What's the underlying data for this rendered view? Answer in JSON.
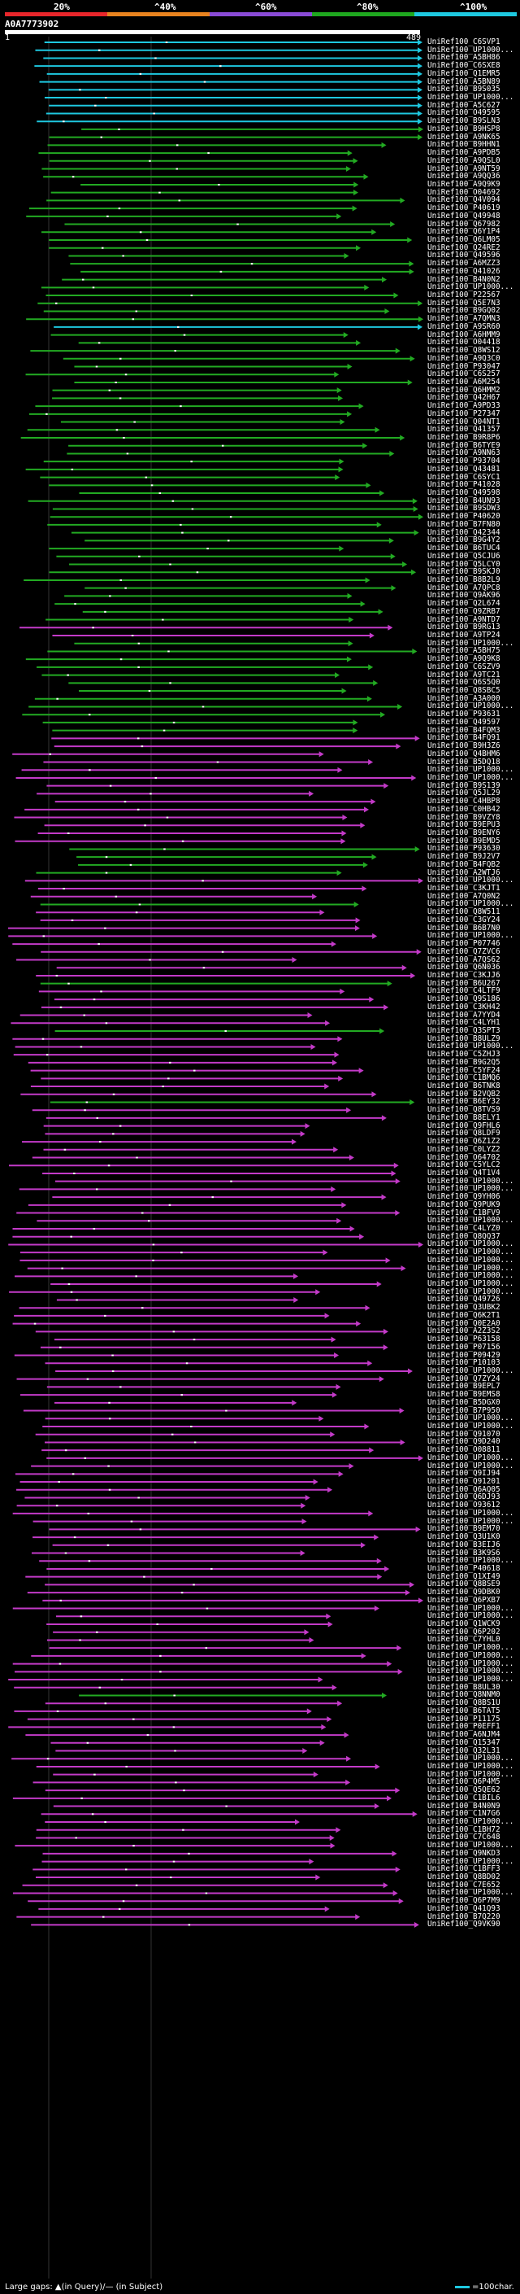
{
  "legend": {
    "ticks": [
      "20%",
      "^40%",
      "^60%",
      "^80%",
      "^100%"
    ],
    "colors": [
      "#e8262b",
      "#e8831f",
      "#8a4bd6",
      "#1fa81f",
      "#1ec8e0"
    ]
  },
  "query": {
    "id": "A0A7773902",
    "start": "1",
    "end": "489"
  },
  "hit_colors": {
    "cyan": "#1ec8e0",
    "green": "#22aa22",
    "magenta": "#c33ac8",
    "gap": "#000000"
  },
  "hits": [
    {
      "label": "UniRef100_C6SVP1",
      "c": "cyan"
    },
    {
      "label": "UniRef100_UP1000...",
      "c": "cyan"
    },
    {
      "label": "UniRef100_A5BH86",
      "c": "cyan"
    },
    {
      "label": "UniRef100_C6SXE8",
      "c": "cyan"
    },
    {
      "label": "UniRef100_Q1EMR5",
      "c": "cyan"
    },
    {
      "label": "UniRef100_A5BN89",
      "c": "cyan"
    },
    {
      "label": "UniRef100_B9S035",
      "c": "cyan"
    },
    {
      "label": "UniRef100_UP1000...",
      "c": "cyan"
    },
    {
      "label": "UniRef100_A5C627",
      "c": "cyan"
    },
    {
      "label": "UniRef100_O49595",
      "c": "cyan"
    },
    {
      "label": "UniRef100_B9SLN3",
      "c": "cyan"
    },
    {
      "label": "UniRef100_B9HSP8",
      "c": "green"
    },
    {
      "label": "UniRef100_A9NK65",
      "c": "green"
    },
    {
      "label": "UniRef100_B9HHN1",
      "c": "green"
    },
    {
      "label": "UniRef100_A9PDB5",
      "c": "green"
    },
    {
      "label": "UniRef100_A9QSL0",
      "c": "green"
    },
    {
      "label": "UniRef100_A9NT59",
      "c": "green"
    },
    {
      "label": "UniRef100_A9QQ36",
      "c": "green"
    },
    {
      "label": "UniRef100_A9Q9K9",
      "c": "green"
    },
    {
      "label": "UniRef100_O04692",
      "c": "green"
    },
    {
      "label": "UniRef100_Q4V094",
      "c": "green"
    },
    {
      "label": "UniRef100_P40619",
      "c": "green"
    },
    {
      "label": "UniRef100_Q49948",
      "c": "green"
    },
    {
      "label": "UniRef100_Q67982",
      "c": "green"
    },
    {
      "label": "UniRef100_Q6Y1P4",
      "c": "green"
    },
    {
      "label": "UniRef100_Q6LM05",
      "c": "green"
    },
    {
      "label": "UniRef100_Q24RE2",
      "c": "green"
    },
    {
      "label": "UniRef100_Q49596",
      "c": "green"
    },
    {
      "label": "UniRef100_A6MZZ3",
      "c": "green"
    },
    {
      "label": "UniRef100_Q41026",
      "c": "green"
    },
    {
      "label": "UniRef100_B4N0N2",
      "c": "green"
    },
    {
      "label": "UniRef100_UP1000...",
      "c": "green"
    },
    {
      "label": "UniRef100_P22567",
      "c": "green"
    },
    {
      "label": "UniRef100_Q5E7N3",
      "c": "green"
    },
    {
      "label": "UniRef100_B9GQ02",
      "c": "green"
    },
    {
      "label": "UniRef100_A7QMN3",
      "c": "green"
    },
    {
      "label": "UniRef100_A9SR60",
      "c": "cyan"
    },
    {
      "label": "UniRef100_A6HMM9",
      "c": "green"
    },
    {
      "label": "UniRef100_O04418",
      "c": "green"
    },
    {
      "label": "UniRef100_Q8WS12",
      "c": "green"
    },
    {
      "label": "UniRef100_A9Q3C0",
      "c": "green"
    },
    {
      "label": "UniRef100_P93047",
      "c": "green"
    },
    {
      "label": "UniRef100_C6S257",
      "c": "green"
    },
    {
      "label": "UniRef100_A6M254",
      "c": "green"
    },
    {
      "label": "UniRef100_Q6HMM2",
      "c": "green"
    },
    {
      "label": "UniRef100_Q42H67",
      "c": "green"
    },
    {
      "label": "UniRef100_A9PD33",
      "c": "green"
    },
    {
      "label": "UniRef100_P27347",
      "c": "green"
    },
    {
      "label": "UniRef100_Q04NT1",
      "c": "green"
    },
    {
      "label": "UniRef100_Q41357",
      "c": "green"
    },
    {
      "label": "UniRef100_B9R8P6",
      "c": "green"
    },
    {
      "label": "UniRef100_B6TYE9",
      "c": "green"
    },
    {
      "label": "UniRef100_A9NN63",
      "c": "green"
    },
    {
      "label": "UniRef100_P93704",
      "c": "green"
    },
    {
      "label": "UniRef100_Q43481",
      "c": "green"
    },
    {
      "label": "UniRef100_C6SYC1",
      "c": "green"
    },
    {
      "label": "UniRef100_P41028",
      "c": "green"
    },
    {
      "label": "UniRef100_Q49598",
      "c": "green"
    },
    {
      "label": "UniRef100_B4UN93",
      "c": "green"
    },
    {
      "label": "UniRef100_B9SDW3",
      "c": "green"
    },
    {
      "label": "UniRef100_P40620",
      "c": "green"
    },
    {
      "label": "UniRef100_B7FN80",
      "c": "green"
    },
    {
      "label": "UniRef100_Q42344",
      "c": "green"
    },
    {
      "label": "UniRef100_B9G4Y2",
      "c": "green"
    },
    {
      "label": "UniRef100_B6TUC4",
      "c": "green"
    },
    {
      "label": "UniRef100_Q5CJU6",
      "c": "green"
    },
    {
      "label": "UniRef100_Q5LCY0",
      "c": "green"
    },
    {
      "label": "UniRef100_B9SKJ0",
      "c": "green"
    },
    {
      "label": "UniRef100_B8B2L9",
      "c": "green"
    },
    {
      "label": "UniRef100_A7QPC8",
      "c": "green"
    },
    {
      "label": "UniRef100_Q9AK96",
      "c": "green"
    },
    {
      "label": "UniRef100_Q2L674",
      "c": "green"
    },
    {
      "label": "UniRef100_Q9ZRB7",
      "c": "green"
    },
    {
      "label": "UniRef100_A9NTD7",
      "c": "green"
    },
    {
      "label": "UniRef100_B9RG13",
      "c": "magenta"
    },
    {
      "label": "UniRef100_A9TP24",
      "c": "magenta"
    },
    {
      "label": "UniRef100_UP1000...",
      "c": "green"
    },
    {
      "label": "UniRef100_A5BH75",
      "c": "green"
    },
    {
      "label": "UniRef100_A9Q9K8",
      "c": "green"
    },
    {
      "label": "UniRef100_C6SZV9",
      "c": "green"
    },
    {
      "label": "UniRef100_A9TC21",
      "c": "green"
    },
    {
      "label": "UniRef100_Q6S5Q0",
      "c": "green"
    },
    {
      "label": "UniRef100_Q8SBC5",
      "c": "green"
    },
    {
      "label": "UniRef100_A3A000",
      "c": "green"
    },
    {
      "label": "UniRef100_UP1000...",
      "c": "green"
    },
    {
      "label": "UniRef100_P93631",
      "c": "green"
    },
    {
      "label": "UniRef100_Q49597",
      "c": "green"
    },
    {
      "label": "UniRef100_B4FQM3",
      "c": "green"
    },
    {
      "label": "UniRef100_B4FQ91",
      "c": "magenta"
    },
    {
      "label": "UniRef100_B9H3Z6",
      "c": "magenta"
    },
    {
      "label": "UniRef100_Q4BHM6",
      "c": "magenta"
    },
    {
      "label": "UniRef100_B5DQ18",
      "c": "magenta"
    },
    {
      "label": "UniRef100_UP1000...",
      "c": "magenta"
    },
    {
      "label": "UniRef100_UP1000...",
      "c": "magenta"
    },
    {
      "label": "UniRef100_B9S139",
      "c": "magenta"
    },
    {
      "label": "UniRef100_Q5JL29",
      "c": "magenta"
    },
    {
      "label": "UniRef100_C4HBP8",
      "c": "magenta"
    },
    {
      "label": "UniRef100_C0HB42",
      "c": "magenta"
    },
    {
      "label": "UniRef100_B9VZY8",
      "c": "magenta"
    },
    {
      "label": "UniRef100_B9EPU3",
      "c": "magenta"
    },
    {
      "label": "UniRef100_B9ENY6",
      "c": "magenta"
    },
    {
      "label": "UniRef100_B9EMD5",
      "c": "magenta"
    },
    {
      "label": "UniRef100_P93630",
      "c": "green"
    },
    {
      "label": "UniRef100_B9J2V7",
      "c": "green"
    },
    {
      "label": "UniRef100_B4FQB2",
      "c": "green"
    },
    {
      "label": "UniRef100_A2WTJ6",
      "c": "green"
    },
    {
      "label": "UniRef100_UP1000...",
      "c": "magenta"
    },
    {
      "label": "UniRef100_C3KJT1",
      "c": "magenta"
    },
    {
      "label": "UniRef100_A7Q0N2",
      "c": "magenta"
    },
    {
      "label": "UniRef100_UP1000...",
      "c": "green"
    },
    {
      "label": "UniRef100_Q8W511",
      "c": "magenta"
    },
    {
      "label": "UniRef100_C3GY24",
      "c": "magenta"
    },
    {
      "label": "UniRef100_B6B7N0",
      "c": "magenta"
    },
    {
      "label": "UniRef100_UP1000...",
      "c": "magenta"
    },
    {
      "label": "UniRef100_P07746",
      "c": "magenta"
    },
    {
      "label": "UniRef100_Q7ZVC6",
      "c": "magenta"
    },
    {
      "label": "UniRef100_A7QS62",
      "c": "magenta"
    },
    {
      "label": "UniRef100_Q6N036",
      "c": "magenta"
    },
    {
      "label": "UniRef100_C3KJJ6",
      "c": "magenta"
    },
    {
      "label": "UniRef100_B6U267",
      "c": "green"
    },
    {
      "label": "UniRef100_C4LTF9",
      "c": "magenta"
    },
    {
      "label": "UniRef100_Q9S186",
      "c": "magenta"
    },
    {
      "label": "UniRef100_C3KH42",
      "c": "magenta"
    },
    {
      "label": "UniRef100_A7YYD4",
      "c": "magenta"
    },
    {
      "label": "UniRef100_C4LYH1",
      "c": "magenta"
    },
    {
      "label": "UniRef100_Q3SPT3",
      "c": "green"
    },
    {
      "label": "UniRef100_B8ULZ9",
      "c": "magenta"
    },
    {
      "label": "UniRef100_UP1000...",
      "c": "magenta"
    },
    {
      "label": "UniRef100_C5ZHJ3",
      "c": "magenta"
    },
    {
      "label": "UniRef100_B9G2Q5",
      "c": "magenta"
    },
    {
      "label": "UniRef100_C5YF24",
      "c": "magenta"
    },
    {
      "label": "UniRef100_C1BMQ6",
      "c": "magenta"
    },
    {
      "label": "UniRef100_B6TNK8",
      "c": "magenta"
    },
    {
      "label": "UniRef100_B2VQB2",
      "c": "magenta"
    },
    {
      "label": "UniRef100_B6EY32",
      "c": "green"
    },
    {
      "label": "UniRef100_Q8TVS9",
      "c": "magenta"
    },
    {
      "label": "UniRef100_B8ELY1",
      "c": "magenta"
    },
    {
      "label": "UniRef100_Q9FHL6",
      "c": "magenta"
    },
    {
      "label": "UniRef100_Q8LDF9",
      "c": "magenta"
    },
    {
      "label": "UniRef100_Q6Z1Z2",
      "c": "magenta"
    },
    {
      "label": "UniRef100_C0LYZ2",
      "c": "magenta"
    },
    {
      "label": "UniRef100_O64702",
      "c": "magenta"
    },
    {
      "label": "UniRef100_C5YLC2",
      "c": "magenta"
    },
    {
      "label": "UniRef100_Q4T1V4",
      "c": "magenta"
    },
    {
      "label": "UniRef100_UP1000...",
      "c": "magenta"
    },
    {
      "label": "UniRef100_UP1000...",
      "c": "magenta"
    },
    {
      "label": "UniRef100_Q9YH06",
      "c": "magenta"
    },
    {
      "label": "UniRef100_Q9PUK9",
      "c": "magenta"
    },
    {
      "label": "UniRef100_C1BFV9",
      "c": "magenta"
    },
    {
      "label": "UniRef100_UP1000...",
      "c": "magenta"
    },
    {
      "label": "UniRef100_C4LYZ0",
      "c": "magenta"
    },
    {
      "label": "UniRef100_Q8QQ37",
      "c": "magenta"
    },
    {
      "label": "UniRef100_UP1000...",
      "c": "magenta"
    },
    {
      "label": "UniRef100_UP1000...",
      "c": "magenta"
    },
    {
      "label": "UniRef100_UP1000...",
      "c": "magenta"
    },
    {
      "label": "UniRef100_UP1000...",
      "c": "magenta"
    },
    {
      "label": "UniRef100_UP1000...",
      "c": "magenta"
    },
    {
      "label": "UniRef100_UP1000...",
      "c": "magenta"
    },
    {
      "label": "UniRef100_UP1000...",
      "c": "magenta"
    },
    {
      "label": "UniRef100_Q49726",
      "c": "magenta"
    },
    {
      "label": "UniRef100_Q3UBK2",
      "c": "magenta"
    },
    {
      "label": "UniRef100_Q6K2T1",
      "c": "magenta"
    },
    {
      "label": "UniRef100_Q0E2A0",
      "c": "magenta"
    },
    {
      "label": "UniRef100_A2Z3S2",
      "c": "magenta"
    },
    {
      "label": "UniRef100_P63158",
      "c": "magenta"
    },
    {
      "label": "UniRef100_P07156",
      "c": "magenta"
    },
    {
      "label": "UniRef100_P09429",
      "c": "magenta"
    },
    {
      "label": "UniRef100_P10103",
      "c": "magenta"
    },
    {
      "label": "UniRef100_UP1000...",
      "c": "magenta"
    },
    {
      "label": "UniRef100_Q7ZY24",
      "c": "magenta"
    },
    {
      "label": "UniRef100_B9EPL7",
      "c": "magenta"
    },
    {
      "label": "UniRef100_B9EMS8",
      "c": "magenta"
    },
    {
      "label": "UniRef100_B5DGX0",
      "c": "magenta"
    },
    {
      "label": "UniRef100_B7P950",
      "c": "magenta"
    },
    {
      "label": "UniRef100_UP1000...",
      "c": "magenta"
    },
    {
      "label": "UniRef100_UP1000...",
      "c": "magenta"
    },
    {
      "label": "UniRef100_Q91070",
      "c": "magenta"
    },
    {
      "label": "UniRef100_Q9D240",
      "c": "magenta"
    },
    {
      "label": "UniRef100_O08811",
      "c": "magenta"
    },
    {
      "label": "UniRef100_UP1000...",
      "c": "magenta"
    },
    {
      "label": "UniRef100_UP1000...",
      "c": "magenta"
    },
    {
      "label": "UniRef100_Q9IJ94",
      "c": "magenta"
    },
    {
      "label": "UniRef100_Q91201",
      "c": "magenta"
    },
    {
      "label": "UniRef100_Q6AQ05",
      "c": "magenta"
    },
    {
      "label": "UniRef100_Q6DJ93",
      "c": "magenta"
    },
    {
      "label": "UniRef100_O93612",
      "c": "magenta"
    },
    {
      "label": "UniRef100_UP1000...",
      "c": "magenta"
    },
    {
      "label": "UniRef100_UP1000...",
      "c": "magenta"
    },
    {
      "label": "UniRef100_B9EM70",
      "c": "magenta"
    },
    {
      "label": "UniRef100_Q3U1K0",
      "c": "magenta"
    },
    {
      "label": "UniRef100_B3EIJ6",
      "c": "magenta"
    },
    {
      "label": "UniRef100_B3K9S6",
      "c": "magenta"
    },
    {
      "label": "UniRef100_UP1000...",
      "c": "magenta"
    },
    {
      "label": "UniRef100_P40618",
      "c": "magenta"
    },
    {
      "label": "UniRef100_Q1XI49",
      "c": "magenta"
    },
    {
      "label": "UniRef100_Q8BSE9",
      "c": "magenta"
    },
    {
      "label": "UniRef100_Q9DBK0",
      "c": "magenta"
    },
    {
      "label": "UniRef100_Q6PXB7",
      "c": "magenta"
    },
    {
      "label": "UniRef100_UP1000...",
      "c": "magenta"
    },
    {
      "label": "UniRef100_UP1000...",
      "c": "magenta"
    },
    {
      "label": "UniRef100_Q1WCK9",
      "c": "magenta"
    },
    {
      "label": "UniRef100_Q6P202",
      "c": "magenta"
    },
    {
      "label": "UniRef100_C7YHL0",
      "c": "magenta"
    },
    {
      "label": "UniRef100_UP1000...",
      "c": "magenta"
    },
    {
      "label": "UniRef100_UP1000...",
      "c": "magenta"
    },
    {
      "label": "UniRef100_UP1000...",
      "c": "magenta"
    },
    {
      "label": "UniRef100_UP1000...",
      "c": "magenta"
    },
    {
      "label": "UniRef100_UP1000...",
      "c": "magenta"
    },
    {
      "label": "UniRef100_B8UL30",
      "c": "magenta"
    },
    {
      "label": "UniRef100_Q8NNM0",
      "c": "green"
    },
    {
      "label": "UniRef100_Q8BS1U",
      "c": "magenta"
    },
    {
      "label": "UniRef100_B6TAT5",
      "c": "magenta"
    },
    {
      "label": "UniRef100_P11175",
      "c": "magenta"
    },
    {
      "label": "UniRef100_P0EFF1",
      "c": "magenta"
    },
    {
      "label": "UniRef100_A6NJM4",
      "c": "magenta"
    },
    {
      "label": "UniRef100_Q15347",
      "c": "magenta"
    },
    {
      "label": "UniRef100_Q32L31",
      "c": "magenta"
    },
    {
      "label": "UniRef100_UP1000...",
      "c": "magenta"
    },
    {
      "label": "UniRef100_UP1000...",
      "c": "magenta"
    },
    {
      "label": "UniRef100_UP1000...",
      "c": "magenta"
    },
    {
      "label": "UniRef100_Q6P4M5",
      "c": "magenta"
    },
    {
      "label": "UniRef100_Q5QE62",
      "c": "magenta"
    },
    {
      "label": "UniRef100_C1BIL6",
      "c": "magenta"
    },
    {
      "label": "UniRef100_B4N0N9",
      "c": "magenta"
    },
    {
      "label": "UniRef100_C1N7G6",
      "c": "magenta"
    },
    {
      "label": "UniRef100_UP1000...",
      "c": "magenta"
    },
    {
      "label": "UniRef100_C1BH72",
      "c": "magenta"
    },
    {
      "label": "UniRef100_C7C648",
      "c": "magenta"
    },
    {
      "label": "UniRef100_UP1000...",
      "c": "magenta"
    },
    {
      "label": "UniRef100_Q9NKD3",
      "c": "magenta"
    },
    {
      "label": "UniRef100_UP1000...",
      "c": "magenta"
    },
    {
      "label": "UniRef100_C1BFF3",
      "c": "magenta"
    },
    {
      "label": "UniRef100_Q8BD02",
      "c": "magenta"
    },
    {
      "label": "UniRef100_C7E652",
      "c": "magenta"
    },
    {
      "label": "UniRef100_UP1000...",
      "c": "magenta"
    },
    {
      "label": "UniRef100_Q6P7M9",
      "c": "magenta"
    },
    {
      "label": "UniRef100_Q41Q93",
      "c": "magenta"
    },
    {
      "label": "UniRef100_B7Q220",
      "c": "magenta"
    },
    {
      "label": "UniRef100_Q9VK90",
      "c": "magenta"
    }
  ],
  "footer": {
    "gaps_text": "Large gaps: ▲(in Query)/— (in Subject)",
    "scale_text": "=100char."
  }
}
